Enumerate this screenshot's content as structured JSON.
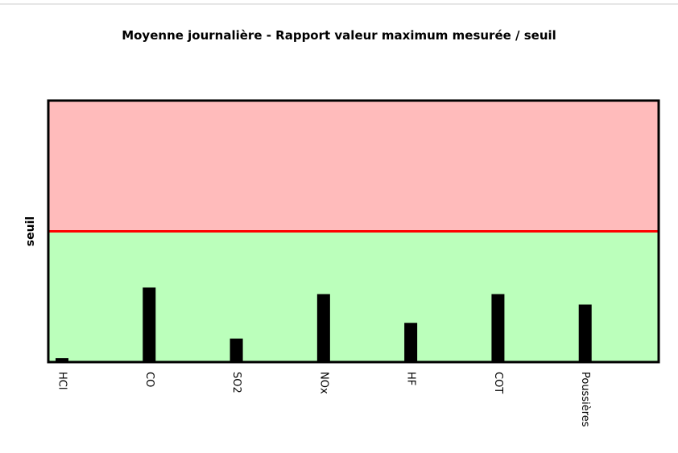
{
  "chart_data": {
    "type": "bar",
    "title": "Moyenne journalière - Rapport valeur maximum mesurée / seuil",
    "categories": [
      "HCl",
      "CO",
      "SO2",
      "NOx",
      "HF",
      "COT",
      "Poussières"
    ],
    "values": [
      0.03,
      0.57,
      0.18,
      0.52,
      0.3,
      0.52,
      0.44
    ],
    "color": "#000000",
    "ylim": [
      0,
      2
    ],
    "threshold": {
      "label": "seuil",
      "value": 1,
      "color": "#ff0000"
    },
    "zone_colors": {
      "above": "#ffbbbb",
      "below": "#bbffbb"
    }
  }
}
